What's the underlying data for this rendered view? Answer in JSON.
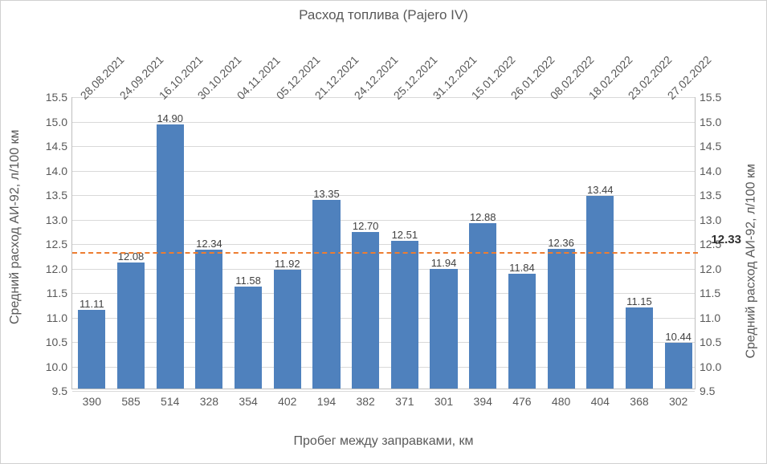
{
  "title": "Расход топлива (Pajero IV)",
  "x_title": "Пробег между заправками, км",
  "y_title_left": "Средний расход АИ-92, л/100 км",
  "y_title_right": "Средний расход АИ-92, л/100 км",
  "ylim": [
    9.5,
    15.5
  ],
  "ytick_step": 0.5,
  "yticks": [
    9.5,
    10.0,
    10.5,
    11.0,
    11.5,
    12.0,
    12.5,
    13.0,
    13.5,
    14.0,
    14.5,
    15.0,
    15.5
  ],
  "avg_value": 12.33,
  "avg_label": "12.33",
  "bar_color": "#4f81bd",
  "avg_line_color": "#ed7d31",
  "grid_color": "#d9d9d9",
  "text_color": "#595959",
  "background_color": "#ffffff",
  "bar_width_ratio": 0.7,
  "dates": [
    "28.08.2021",
    "24.09.2021",
    "16.10.2021",
    "30.10.2021",
    "04.11.2021",
    "05.12.2021",
    "21.12.2021",
    "24.12.2021",
    "25.12.2021",
    "31.12.2021",
    "15.01.2022",
    "26.01.2022",
    "08.02.2022",
    "18.02.2022",
    "23.02.2022",
    "27.02.2022"
  ],
  "mileage": [
    "390",
    "585",
    "514",
    "328",
    "354",
    "402",
    "194",
    "382",
    "371",
    "301",
    "394",
    "476",
    "480",
    "404",
    "368",
    "302"
  ],
  "values": [
    11.11,
    12.08,
    14.9,
    12.34,
    11.58,
    11.92,
    13.35,
    12.7,
    12.51,
    11.94,
    12.88,
    11.84,
    12.36,
    13.44,
    11.15,
    10.44
  ],
  "value_labels": [
    "11.11",
    "12.08",
    "14.90",
    "12.34",
    "11.58",
    "11.92",
    "13.35",
    "12.70",
    "12.51",
    "11.94",
    "12.88",
    "11.84",
    "12.36",
    "13.44",
    "11.15",
    "10.44"
  ],
  "title_fontsize": 17,
  "axis_label_fontsize": 16,
  "tick_fontsize": 14,
  "bar_label_fontsize": 13
}
